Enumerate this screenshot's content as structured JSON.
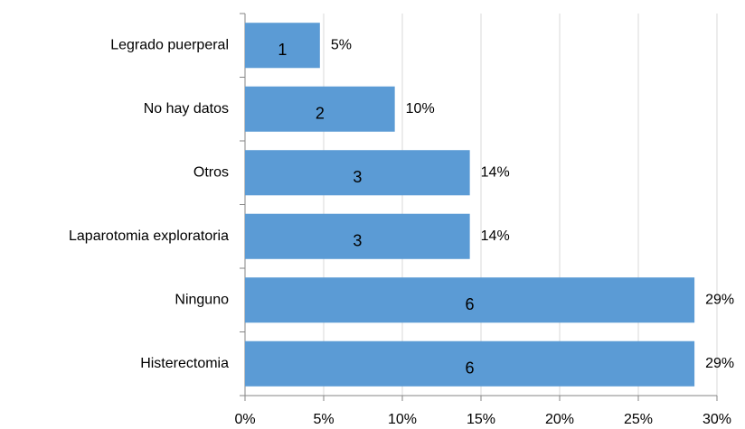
{
  "chart_data": {
    "type": "barh",
    "categories": [
      "Legrado puerperal",
      "No hay datos",
      "Otros",
      "Laparotomia exploratoria",
      "Ninguno",
      "Histerectomia"
    ],
    "values": [
      4.76,
      9.52,
      14.29,
      14.29,
      28.57,
      28.57
    ],
    "value_labels": [
      "5%",
      "10%",
      "14%",
      "14%",
      "29%",
      "29%"
    ],
    "counts": [
      1,
      2,
      3,
      3,
      6,
      6
    ],
    "color": "#5b9bd5",
    "xlim": [
      0,
      30
    ],
    "xticks": [
      {
        "value": 0,
        "label": "0%"
      },
      {
        "value": 5,
        "label": "5%"
      },
      {
        "value": 10,
        "label": "10%"
      },
      {
        "value": 15,
        "label": "15%"
      },
      {
        "value": 20,
        "label": "20%"
      },
      {
        "value": 25,
        "label": "25%"
      },
      {
        "value": 30,
        "label": "30%"
      }
    ],
    "grid": true
  }
}
